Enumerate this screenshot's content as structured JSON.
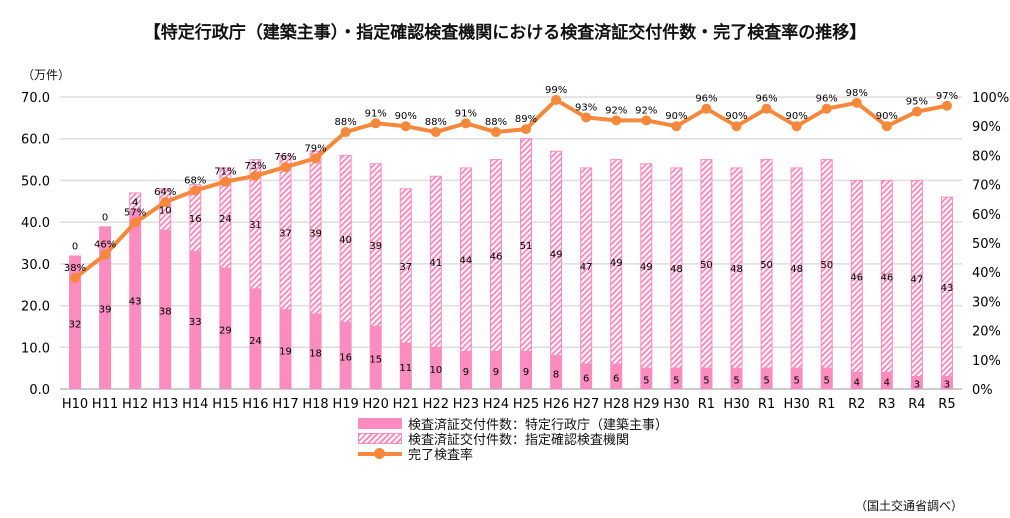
{
  "title": "【特定行政庁（建築主事）・指定確認検査機関における検査済証交付件数・完了検査率の推移】",
  "unit_label": "（万件）",
  "source": "（国土交通省調べ）",
  "colors": {
    "solid": "#fb8cbf",
    "hatch": "#fb8cbf",
    "line": "#f5883a"
  },
  "chart_data": {
    "type": "bar",
    "stacked": true,
    "title": "【特定行政庁（建築主事）・指定確認検査機関における検査済証交付件数・完了検査率の推移】",
    "ylabel": "（万件）",
    "ylim": [
      0,
      70
    ],
    "yticks": [
      "0.0",
      "10.0",
      "20.0",
      "30.0",
      "40.0",
      "50.0",
      "60.0",
      "70.0"
    ],
    "y2lim": [
      0,
      100
    ],
    "y2ticks": [
      "0%",
      "10%",
      "20%",
      "30%",
      "40%",
      "50%",
      "60%",
      "70%",
      "80%",
      "90%",
      "100%"
    ],
    "grid": true,
    "legend_position": "bottom",
    "categories": [
      "H10",
      "H11",
      "H12",
      "H13",
      "H14",
      "H15",
      "H16",
      "H17",
      "H18",
      "H19",
      "H20",
      "H21",
      "H22",
      "H23",
      "H24",
      "H25",
      "H26",
      "H27",
      "H28",
      "H29",
      "H30",
      "R1",
      "H30",
      "R1",
      "H30",
      "R1",
      "R2",
      "R3",
      "R4",
      "R5"
    ],
    "series": [
      {
        "name": "検査済証交付件数：特定行政庁（建築主事）",
        "kind": "bar-solid",
        "values": [
          32,
          39,
          43,
          38,
          33,
          29,
          24,
          19,
          18,
          16,
          15,
          11,
          10,
          9,
          9,
          9,
          8,
          6,
          6,
          5,
          5,
          5,
          5,
          5,
          5,
          5,
          4,
          4,
          3,
          3
        ]
      },
      {
        "name": "検査済証交付件数：指定確認検査機関",
        "kind": "bar-hatch",
        "values": [
          0,
          0,
          4,
          10,
          16,
          24,
          31,
          37,
          39,
          40,
          39,
          37,
          41,
          44,
          46,
          51,
          49,
          47,
          49,
          49,
          48,
          50,
          48,
          50,
          48,
          50,
          46,
          46,
          47,
          43
        ]
      },
      {
        "name": "完了検査率",
        "kind": "line",
        "axis": "right",
        "unit": "%",
        "values": [
          38,
          46,
          57,
          64,
          68,
          71,
          73,
          76,
          79,
          88,
          91,
          90,
          88,
          91,
          88,
          89,
          99,
          93,
          92,
          92,
          90,
          96,
          90,
          96,
          90,
          96,
          98,
          90,
          95,
          97
        ]
      }
    ]
  }
}
